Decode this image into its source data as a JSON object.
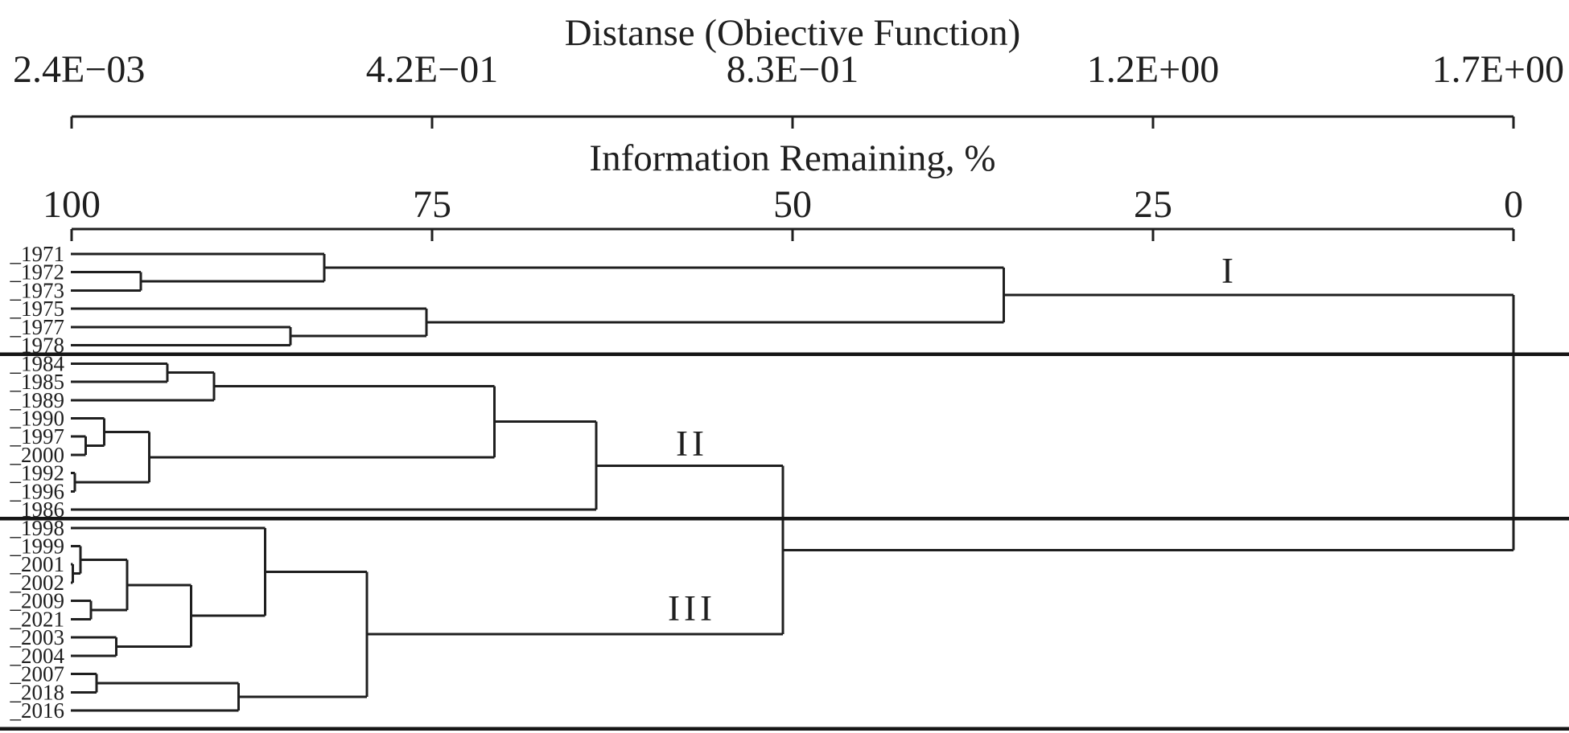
{
  "figure": {
    "background": "#ffffff",
    "line_color": "#1f1f1f"
  },
  "distance_axis": {
    "title": "Distanse (Obiective Function)",
    "ticks": [
      "2.4E−03",
      "4.2E−01",
      "8.3E−01",
      "1.2E+00",
      "1.7E+00"
    ]
  },
  "info_axis": {
    "title": "Information Remaining, %",
    "ticks": [
      "100",
      "75",
      "50",
      "25",
      "0"
    ]
  },
  "cluster_labels": [
    {
      "label": "I"
    },
    {
      "label": "II"
    },
    {
      "label": "III"
    }
  ],
  "chart_data": {
    "type": "dendrogram",
    "orientation": "left-to-right",
    "axis_top": {
      "label": "Distanse (Obiective Function)",
      "tick_labels": [
        "2.4E−03",
        "4.2E−01",
        "8.3E−01",
        "1.2E+00",
        "1.7E+00"
      ],
      "range": [
        0.0024,
        1.7
      ]
    },
    "axis_bottom": {
      "label": "Information Remaining, %",
      "tick_labels": [
        "100",
        "75",
        "50",
        "25",
        "0"
      ],
      "range": [
        100,
        0
      ]
    },
    "leaves_top_to_bottom": [
      "_1971",
      "_1972",
      "_1973",
      "_1975",
      "_1977",
      "_1978",
      "_1984",
      "_1985",
      "_1989",
      "_1990",
      "_1997",
      "_2000",
      "_1992",
      "_1996",
      "_1986",
      "_1998",
      "_1999",
      "_2001",
      "_2002",
      "_2009",
      "_2021",
      "_2003",
      "_2004",
      "_2007",
      "_2018",
      "_2016"
    ],
    "clusters": [
      {
        "label": "I",
        "members": [
          "_1971",
          "_1972",
          "_1973",
          "_1975",
          "_1977",
          "_1978"
        ]
      },
      {
        "label": "II",
        "members": [
          "_1984",
          "_1985",
          "_1989",
          "_1990",
          "_1997",
          "_2000",
          "_1992",
          "_1996",
          "_1986"
        ]
      },
      {
        "label": "III",
        "members": [
          "_1998",
          "_1999",
          "_2001",
          "_2002",
          "_2009",
          "_2021",
          "_2003",
          "_2004",
          "_2007",
          "_2018",
          "_2016"
        ]
      }
    ],
    "tree": {
      "d": 1.7,
      "children": [
        {
          "d": 1.1,
          "children": [
            {
              "d": 0.3,
              "children": [
                "_1971",
                {
                  "d": 0.084,
                  "children": [
                    "_1972",
                    "_1973"
                  ]
                }
              ]
            },
            {
              "d": 0.42,
              "children": [
                "_1975",
                {
                  "d": 0.26,
                  "children": [
                    "_1977",
                    "_1978"
                  ]
                }
              ]
            }
          ]
        },
        {
          "d": 0.84,
          "children": [
            {
              "d": 0.62,
              "children": [
                {
                  "d": 0.5,
                  "children": [
                    {
                      "d": 0.17,
                      "children": [
                        {
                          "d": 0.115,
                          "children": [
                            "_1984",
                            "_1985"
                          ]
                        },
                        "_1989"
                      ]
                    },
                    {
                      "d": 0.094,
                      "children": [
                        {
                          "d": 0.041,
                          "children": [
                            "_1990",
                            {
                              "d": 0.019,
                              "children": [
                                "_1997",
                                "_2000"
                              ]
                            }
                          ]
                        },
                        {
                          "d": 0.006,
                          "children": [
                            "_1992",
                            "_1996"
                          ]
                        }
                      ]
                    }
                  ]
                },
                "_1986"
              ]
            },
            {
              "d": 0.35,
              "children": [
                {
                  "d": 0.23,
                  "children": [
                    "_1998",
                    {
                      "d": 0.143,
                      "children": [
                        {
                          "d": 0.068,
                          "children": [
                            {
                              "d": 0.013,
                              "children": [
                                "_1999",
                                {
                                  "d": 0.004,
                                  "children": [
                                    "_2001",
                                    "_2002"
                                  ]
                                }
                              ]
                            },
                            {
                              "d": 0.025,
                              "children": [
                                "_2009",
                                "_2021"
                              ]
                            }
                          ]
                        },
                        {
                          "d": 0.055,
                          "children": [
                            "_2003",
                            "_2004"
                          ]
                        }
                      ]
                    }
                  ]
                },
                {
                  "d": 0.199,
                  "children": [
                    {
                      "d": 0.032,
                      "children": [
                        "_2007",
                        "_2018"
                      ]
                    },
                    "_2016"
                  ]
                }
              ]
            }
          ]
        }
      ]
    }
  }
}
